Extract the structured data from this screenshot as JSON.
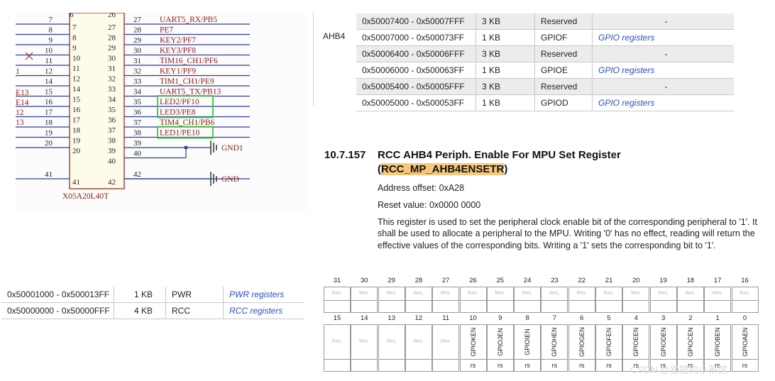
{
  "schematic": {
    "part_name": "X05A20L40T",
    "left_pins": [
      {
        "outer": "7",
        "inner": "7"
      },
      {
        "outer": "8",
        "inner": "8"
      },
      {
        "outer": "9",
        "inner": "9"
      },
      {
        "outer": "10",
        "inner": "10"
      },
      {
        "outer": "11",
        "inner": "11"
      },
      {
        "outer": "12",
        "inner": "12"
      },
      {
        "outer": "14",
        "inner": "14"
      },
      {
        "outer": "15",
        "inner": "15"
      },
      {
        "outer": "16",
        "inner": "16"
      },
      {
        "outer": "17",
        "inner": "17"
      },
      {
        "outer": "18",
        "inner": "18"
      },
      {
        "outer": "19",
        "inner": "19"
      },
      {
        "outer": "20",
        "inner": "20"
      },
      {
        "outer": "41",
        "inner": "41"
      }
    ],
    "right_pins": [
      {
        "outer": "27",
        "inner": "27",
        "signal": "UART5_RX/PB5"
      },
      {
        "outer": "28",
        "inner": "28",
        "signal": "PE7"
      },
      {
        "outer": "29",
        "inner": "29",
        "signal": "KEY2/PF7"
      },
      {
        "outer": "30",
        "inner": "30",
        "signal": "KEY3/PF8"
      },
      {
        "outer": "31",
        "inner": "31",
        "signal": "TIM16_CH1/PF6"
      },
      {
        "outer": "32",
        "inner": "32",
        "signal": "KEY1/PF9"
      },
      {
        "outer": "33",
        "inner": "33",
        "signal": "TIM1_CH1/PE9"
      },
      {
        "outer": "34",
        "inner": "34",
        "signal": "UART5_TX/PB13"
      },
      {
        "outer": "35",
        "inner": "35",
        "signal": "LED2/PF10"
      },
      {
        "outer": "36",
        "inner": "36",
        "signal": "LED3/PE8"
      },
      {
        "outer": "37",
        "inner": "37",
        "signal": "TIM4_CH1/PB6"
      },
      {
        "outer": "38",
        "inner": "38",
        "signal": "LED1/PE10"
      },
      {
        "outer": "39",
        "inner": "39",
        "signal": ""
      },
      {
        "outer": "40",
        "inner": "40",
        "signal": ""
      },
      {
        "outer": "42",
        "inner": "42",
        "signal": ""
      }
    ],
    "left_fragments": [
      "1",
      "E13",
      "E14",
      "12",
      "13"
    ],
    "gnd1_label": "GND1",
    "gnd_label": "GND",
    "highlight_color": "#3cc43c"
  },
  "ahb4_label": "AHB4",
  "top_table": [
    {
      "range": "0x50007400 - 0x50007FFF",
      "size": "3 KB",
      "name": "Reserved",
      "link": "",
      "dash": "-"
    },
    {
      "range": "0x50007000 - 0x500073FF",
      "size": "1 KB",
      "name": "GPIOF",
      "link": "GPIO registers",
      "dash": ""
    },
    {
      "range": "0x50006400 - 0x50006FFF",
      "size": "3 KB",
      "name": "Reserved",
      "link": "",
      "dash": "-"
    },
    {
      "range": "0x50006000 - 0x500063FF",
      "size": "1 KB",
      "name": "GPIOE",
      "link": "GPIO registers",
      "dash": ""
    },
    {
      "range": "0x50005400 - 0x50005FFF",
      "size": "3 KB",
      "name": "Reserved",
      "link": "",
      "dash": "-"
    },
    {
      "range": "0x50005000 - 0x500053FF",
      "size": "1 KB",
      "name": "GPIOD",
      "link": "GPIO registers",
      "dash": ""
    }
  ],
  "bottom_table": [
    {
      "range": "0x50001000 - 0x500013FF",
      "size": "1 KB",
      "name": "PWR",
      "link": "PWR registers"
    },
    {
      "range": "0x50000000 - 0x50000FFF",
      "size": "4 KB",
      "name": "RCC",
      "link": "RCC registers"
    }
  ],
  "register": {
    "number": "10.7.157",
    "title_line1": "RCC AHB4 Periph. Enable For MPU Set Register",
    "title_open": "(",
    "title_name": "RCC_MP_AHB4ENSETR",
    "title_close": ")",
    "address_offset": "Address offset: 0xA28",
    "reset_value": "Reset value: 0x0000 0000",
    "description": "This register is used to set the peripheral clock enable bit of the corresponding peripheral to '1'. It shall be used to allocate a peripheral to the MPU. Writing '0' has no effect, reading will return the effective values of the corresponding bits. Writing a '1' sets the corresponding bit to '1'.",
    "reserved_text": "Res.",
    "access_text": "rs",
    "upper_bits": [
      "31",
      "30",
      "29",
      "28",
      "27",
      "26",
      "25",
      "24",
      "23",
      "22",
      "21",
      "20",
      "19",
      "18",
      "17",
      "16"
    ],
    "lower_bits": [
      "15",
      "14",
      "13",
      "12",
      "11",
      "10",
      "9",
      "8",
      "7",
      "6",
      "5",
      "4",
      "3",
      "2",
      "1",
      "0"
    ],
    "lower_fields": [
      "Res.",
      "Res.",
      "Res.",
      "Res.",
      "Res.",
      "GPIOKEN",
      "GPIOJEN",
      "GPIOIEN",
      "GPIOHEN",
      "GPIOGEN",
      "GPIOFEN",
      "GPIOEEN",
      "GPIODEN",
      "GPIOCEN",
      "GPIOBEN",
      "GPIOAEN"
    ]
  },
  "watermark": "CSDN @猫猫的小茶馆"
}
